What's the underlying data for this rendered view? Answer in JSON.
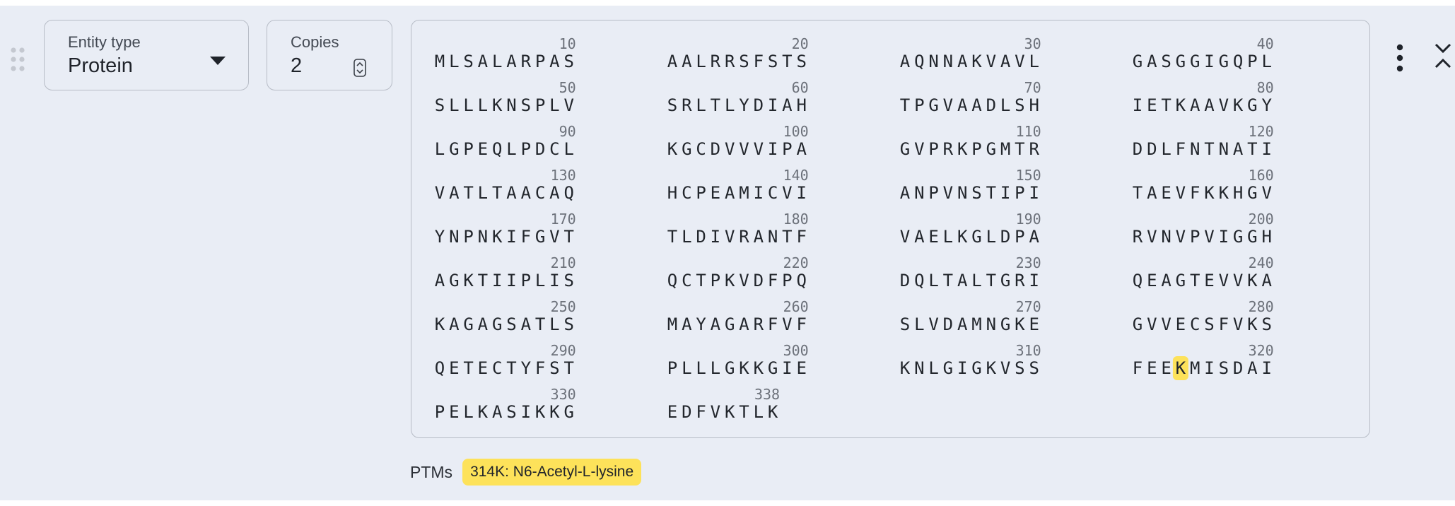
{
  "entity": {
    "type_label": "Entity type",
    "type_value": "Protein",
    "copies_label": "Copies",
    "copies_value": "2"
  },
  "sequence": {
    "residues": "MLSALARPASAALRRSFSTSAQNNAKVAVLGASGGIGQPLSLLLKNSPLVSRLTLYDIAHTPGVAADLSHIETKAAVKGYLGPEQLPDCLKGCDVVVIPAGVPRKPGMTRDDLFNTNATIVATLTAACAQHCPEAMICVIANPVNSTIPITAEVFKKHGVYNPNKIFGVTTLDIVRANTFVAELKGLDPARVNVPVIGGHAGKTIIPLISQCTPKVDFPQDQLTALTGRIQEAGTEVVKAKAGAGSATLSMAYAGARFVFSLVDAMNGKEGVVECSFVKSQETECTYFSTPLLLGKKGIEKNLGIGKVSSFEEKMISDAIPELKASIKKGEDFVKTLK",
    "length": 338,
    "group_size": 10,
    "groups_per_row": 4,
    "highlight_positions": [
      314
    ],
    "highlight_color": "#fde25a"
  },
  "ptms": {
    "label": "PTMs",
    "items": [
      {
        "text": "314K: N6-Acetyl-L-lysine",
        "color": "#fde25a"
      }
    ]
  },
  "icons": {
    "drag": "drag-handle-icon",
    "dropdown": "caret-down-icon",
    "stepper": "stepper-icon",
    "menu": "more-vert-icon",
    "collapse": "collapse-icon"
  }
}
